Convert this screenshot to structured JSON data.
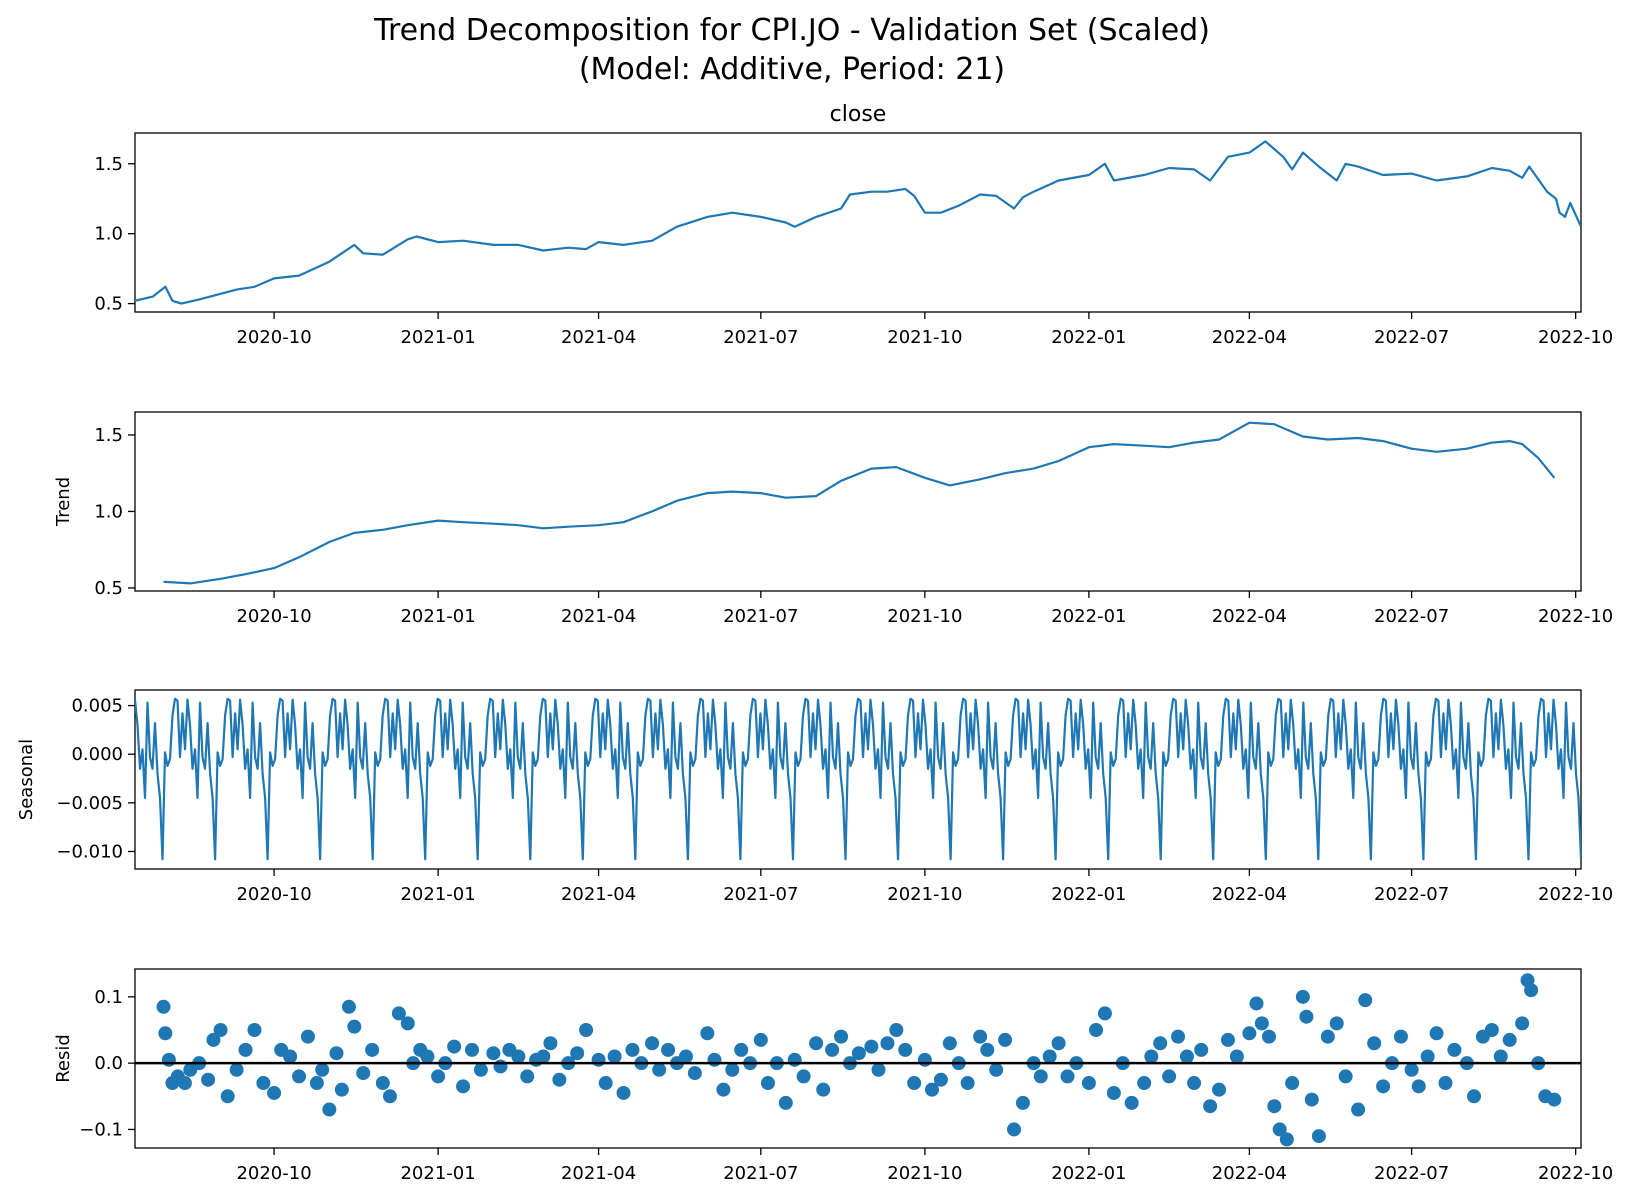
{
  "title_line1": "Trend Decomposition for CPI.JO - Validation Set (Scaled)",
  "title_line2": "(Model: Additive, Period: 21)",
  "colors": {
    "series": "#1f77b4",
    "zero_line": "#000000",
    "axes": "#000000"
  },
  "chart_data": [
    {
      "type": "line",
      "title": "close",
      "ylabel": "",
      "xlim": [
        "2020-07-15",
        "2022-10-04"
      ],
      "ylim": [
        0.44,
        1.72
      ],
      "yticks": [
        "0.5",
        "1.0",
        "1.5"
      ],
      "xticks": [
        "2020-10",
        "2021-01",
        "2021-04",
        "2021-07",
        "2021-10",
        "2022-01",
        "2022-04",
        "2022-07",
        "2022-10"
      ],
      "series": [
        {
          "x": [
            "2020-07-15",
            "2020-07-25",
            "2020-08-01",
            "2020-08-05",
            "2020-08-10",
            "2020-08-20",
            "2020-09-01",
            "2020-09-10",
            "2020-09-20",
            "2020-10-01",
            "2020-10-15",
            "2020-11-01",
            "2020-11-15",
            "2020-11-20",
            "2020-12-01",
            "2020-12-15",
            "2020-12-20",
            "2021-01-01",
            "2021-01-15",
            "2021-02-01",
            "2021-02-15",
            "2021-03-01",
            "2021-03-15",
            "2021-03-25",
            "2021-04-01",
            "2021-04-15",
            "2021-05-01",
            "2021-05-15",
            "2021-06-01",
            "2021-06-15",
            "2021-07-01",
            "2021-07-15",
            "2021-07-20",
            "2021-08-01",
            "2021-08-15",
            "2021-08-20",
            "2021-09-01",
            "2021-09-10",
            "2021-09-20",
            "2021-09-25",
            "2021-10-01",
            "2021-10-10",
            "2021-10-20",
            "2021-11-01",
            "2021-11-10",
            "2021-11-20",
            "2021-11-25",
            "2021-12-01",
            "2021-12-15",
            "2022-01-01",
            "2022-01-10",
            "2022-01-15",
            "2022-02-01",
            "2022-02-15",
            "2022-03-01",
            "2022-03-10",
            "2022-03-20",
            "2022-04-01",
            "2022-04-10",
            "2022-04-20",
            "2022-04-25",
            "2022-05-01",
            "2022-05-10",
            "2022-05-20",
            "2022-05-25",
            "2022-06-01",
            "2022-06-15",
            "2022-07-01",
            "2022-07-15",
            "2022-08-01",
            "2022-08-15",
            "2022-08-25",
            "2022-09-01",
            "2022-09-05",
            "2022-09-15",
            "2022-09-20",
            "2022-09-22",
            "2022-09-25",
            "2022-09-28",
            "2022-10-04"
          ],
          "y": [
            0.52,
            0.55,
            0.62,
            0.52,
            0.5,
            0.53,
            0.57,
            0.6,
            0.62,
            0.68,
            0.7,
            0.8,
            0.92,
            0.86,
            0.85,
            0.96,
            0.98,
            0.94,
            0.95,
            0.92,
            0.92,
            0.88,
            0.9,
            0.89,
            0.94,
            0.92,
            0.95,
            1.05,
            1.12,
            1.15,
            1.12,
            1.08,
            1.05,
            1.12,
            1.18,
            1.28,
            1.3,
            1.3,
            1.32,
            1.27,
            1.15,
            1.15,
            1.2,
            1.28,
            1.27,
            1.18,
            1.26,
            1.3,
            1.38,
            1.42,
            1.5,
            1.38,
            1.42,
            1.47,
            1.46,
            1.38,
            1.55,
            1.58,
            1.66,
            1.55,
            1.46,
            1.58,
            1.48,
            1.38,
            1.5,
            1.48,
            1.42,
            1.43,
            1.38,
            1.41,
            1.47,
            1.45,
            1.4,
            1.48,
            1.3,
            1.25,
            1.15,
            1.12,
            1.22,
            1.05
          ]
        }
      ]
    },
    {
      "type": "line",
      "title": "",
      "ylabel": "Trend",
      "xlim": [
        "2020-07-15",
        "2022-10-04"
      ],
      "ylim": [
        0.48,
        1.65
      ],
      "yticks": [
        "0.5",
        "1.0",
        "1.5"
      ],
      "xticks": [
        "2020-10",
        "2021-01",
        "2021-04",
        "2021-07",
        "2021-10",
        "2022-01",
        "2022-04",
        "2022-07",
        "2022-10"
      ],
      "series": [
        {
          "x": [
            "2020-07-31",
            "2020-08-15",
            "2020-09-01",
            "2020-09-15",
            "2020-10-01",
            "2020-10-15",
            "2020-11-01",
            "2020-11-15",
            "2020-12-01",
            "2020-12-15",
            "2021-01-01",
            "2021-01-15",
            "2021-02-01",
            "2021-02-15",
            "2021-03-01",
            "2021-03-15",
            "2021-04-01",
            "2021-04-15",
            "2021-05-01",
            "2021-05-15",
            "2021-06-01",
            "2021-06-15",
            "2021-07-01",
            "2021-07-15",
            "2021-08-01",
            "2021-08-15",
            "2021-09-01",
            "2021-09-15",
            "2021-10-01",
            "2021-10-15",
            "2021-11-01",
            "2021-11-15",
            "2021-12-01",
            "2021-12-15",
            "2022-01-01",
            "2022-01-15",
            "2022-02-01",
            "2022-02-15",
            "2022-03-01",
            "2022-03-15",
            "2022-04-01",
            "2022-04-15",
            "2022-05-01",
            "2022-05-15",
            "2022-06-01",
            "2022-06-15",
            "2022-07-01",
            "2022-07-15",
            "2022-08-01",
            "2022-08-15",
            "2022-08-25",
            "2022-09-01",
            "2022-09-10",
            "2022-09-19"
          ],
          "y": [
            0.54,
            0.53,
            0.56,
            0.59,
            0.63,
            0.7,
            0.8,
            0.86,
            0.88,
            0.91,
            0.94,
            0.93,
            0.92,
            0.91,
            0.89,
            0.9,
            0.91,
            0.93,
            1.0,
            1.07,
            1.12,
            1.13,
            1.12,
            1.09,
            1.1,
            1.2,
            1.28,
            1.29,
            1.22,
            1.17,
            1.21,
            1.25,
            1.28,
            1.33,
            1.42,
            1.44,
            1.43,
            1.42,
            1.45,
            1.47,
            1.58,
            1.57,
            1.49,
            1.47,
            1.48,
            1.46,
            1.41,
            1.39,
            1.41,
            1.45,
            1.46,
            1.44,
            1.35,
            1.22
          ]
        }
      ]
    },
    {
      "type": "line",
      "title": "",
      "ylabel": "Seasonal",
      "xlim": [
        "2020-07-15",
        "2022-10-04"
      ],
      "ylim": [
        -0.0118,
        0.0066
      ],
      "yticks": [
        "0.005",
        "0.000",
        "−0.005",
        "−0.010"
      ],
      "xticks": [
        "2020-10",
        "2021-01",
        "2021-04",
        "2021-07",
        "2021-10",
        "2022-01",
        "2022-04",
        "2022-07",
        "2022-10"
      ],
      "period_pattern": [
        0.0056,
        0.003,
        -0.0015,
        0.0005,
        -0.0045,
        0.0053,
        -0.0003,
        -0.0015,
        0.0032,
        -0.002,
        -0.0045,
        -0.0108,
        0.0002,
        -0.0012,
        -0.0005,
        0.004,
        0.0057,
        0.0055,
        -0.0003,
        0.0042,
        0.0005
      ],
      "series": [
        {
          "x_start": "2020-07-15",
          "x_end": "2022-10-04",
          "points": 579
        }
      ]
    },
    {
      "type": "scatter",
      "title": "",
      "ylabel": "Resid",
      "xlim": [
        "2020-07-15",
        "2022-10-04"
      ],
      "ylim": [
        -0.128,
        0.142
      ],
      "yticks": [
        "0.1",
        "0.0",
        "−0.1"
      ],
      "xticks": [
        "2020-10",
        "2021-01",
        "2021-04",
        "2021-07",
        "2021-10",
        "2022-01",
        "2022-04",
        "2022-07",
        "2022-10"
      ],
      "zero_line": 0,
      "series": [
        {
          "x": [
            "2020-07-31",
            "2020-08-01",
            "2020-08-03",
            "2020-08-05",
            "2020-08-08",
            "2020-08-12",
            "2020-08-15",
            "2020-08-20",
            "2020-08-25",
            "2020-08-28",
            "2020-09-01",
            "2020-09-05",
            "2020-09-10",
            "2020-09-15",
            "2020-09-20",
            "2020-09-25",
            "2020-10-01",
            "2020-10-05",
            "2020-10-10",
            "2020-10-15",
            "2020-10-20",
            "2020-10-25",
            "2020-10-28",
            "2020-11-01",
            "2020-11-05",
            "2020-11-08",
            "2020-11-12",
            "2020-11-15",
            "2020-11-20",
            "2020-11-25",
            "2020-12-01",
            "2020-12-05",
            "2020-12-10",
            "2020-12-15",
            "2020-12-18",
            "2020-12-22",
            "2020-12-26",
            "2021-01-01",
            "2021-01-05",
            "2021-01-10",
            "2021-01-15",
            "2021-01-20",
            "2021-01-25",
            "2021-02-01",
            "2021-02-05",
            "2021-02-10",
            "2021-02-15",
            "2021-02-20",
            "2021-02-25",
            "2021-03-01",
            "2021-03-05",
            "2021-03-10",
            "2021-03-15",
            "2021-03-20",
            "2021-03-25",
            "2021-04-01",
            "2021-04-05",
            "2021-04-10",
            "2021-04-15",
            "2021-04-20",
            "2021-04-25",
            "2021-05-01",
            "2021-05-05",
            "2021-05-10",
            "2021-05-15",
            "2021-05-20",
            "2021-05-25",
            "2021-06-01",
            "2021-06-05",
            "2021-06-10",
            "2021-06-15",
            "2021-06-20",
            "2021-06-25",
            "2021-07-01",
            "2021-07-05",
            "2021-07-10",
            "2021-07-15",
            "2021-07-20",
            "2021-07-25",
            "2021-08-01",
            "2021-08-05",
            "2021-08-10",
            "2021-08-15",
            "2021-08-20",
            "2021-08-25",
            "2021-09-01",
            "2021-09-05",
            "2021-09-10",
            "2021-09-15",
            "2021-09-20",
            "2021-09-25",
            "2021-10-01",
            "2021-10-05",
            "2021-10-10",
            "2021-10-15",
            "2021-10-20",
            "2021-10-25",
            "2021-11-01",
            "2021-11-05",
            "2021-11-10",
            "2021-11-15",
            "2021-11-20",
            "2021-11-25",
            "2021-12-01",
            "2021-12-05",
            "2021-12-10",
            "2021-12-15",
            "2021-12-20",
            "2021-12-25",
            "2022-01-01",
            "2022-01-05",
            "2022-01-10",
            "2022-01-15",
            "2022-01-20",
            "2022-01-25",
            "2022-02-01",
            "2022-02-05",
            "2022-02-10",
            "2022-02-15",
            "2022-02-20",
            "2022-02-25",
            "2022-03-01",
            "2022-03-05",
            "2022-03-10",
            "2022-03-15",
            "2022-03-20",
            "2022-03-25",
            "2022-04-01",
            "2022-04-05",
            "2022-04-08",
            "2022-04-12",
            "2022-04-15",
            "2022-04-18",
            "2022-04-22",
            "2022-04-25",
            "2022-05-01",
            "2022-05-03",
            "2022-05-06",
            "2022-05-10",
            "2022-05-15",
            "2022-05-20",
            "2022-05-25",
            "2022-06-01",
            "2022-06-05",
            "2022-06-10",
            "2022-06-15",
            "2022-06-20",
            "2022-06-25",
            "2022-07-01",
            "2022-07-05",
            "2022-07-10",
            "2022-07-15",
            "2022-07-20",
            "2022-07-25",
            "2022-08-01",
            "2022-08-05",
            "2022-08-10",
            "2022-08-15",
            "2022-08-20",
            "2022-08-25",
            "2022-09-01",
            "2022-09-04",
            "2022-09-06",
            "2022-09-10",
            "2022-09-14",
            "2022-09-19"
          ],
          "y": [
            0.085,
            0.045,
            0.005,
            -0.03,
            -0.02,
            -0.03,
            -0.01,
            0.0,
            -0.025,
            0.035,
            0.05,
            -0.05,
            -0.01,
            0.02,
            0.05,
            -0.03,
            -0.045,
            0.02,
            0.01,
            -0.02,
            0.04,
            -0.03,
            -0.01,
            -0.07,
            0.015,
            -0.04,
            0.085,
            0.055,
            -0.015,
            0.02,
            -0.03,
            -0.05,
            0.075,
            0.06,
            0.0,
            0.02,
            0.01,
            -0.02,
            0.0,
            0.025,
            -0.035,
            0.02,
            -0.01,
            0.015,
            -0.005,
            0.02,
            0.01,
            -0.02,
            0.005,
            0.01,
            0.03,
            -0.025,
            0.0,
            0.015,
            0.05,
            0.005,
            -0.03,
            0.01,
            -0.045,
            0.02,
            0.0,
            0.03,
            -0.01,
            0.02,
            0.0,
            0.01,
            -0.015,
            0.045,
            0.005,
            -0.04,
            -0.01,
            0.02,
            0.0,
            0.035,
            -0.03,
            0.0,
            -0.06,
            0.005,
            -0.02,
            0.03,
            -0.04,
            0.02,
            0.04,
            0.0,
            0.015,
            0.025,
            -0.01,
            0.03,
            0.05,
            0.02,
            -0.03,
            0.005,
            -0.04,
            -0.025,
            0.03,
            0.0,
            -0.03,
            0.04,
            0.02,
            -0.01,
            0.035,
            -0.1,
            -0.06,
            0.0,
            -0.02,
            0.01,
            0.03,
            -0.02,
            0.0,
            -0.03,
            0.05,
            0.075,
            -0.045,
            0.0,
            -0.06,
            -0.03,
            0.01,
            0.03,
            -0.02,
            0.04,
            0.01,
            -0.03,
            0.02,
            -0.065,
            -0.04,
            0.035,
            0.01,
            0.045,
            0.09,
            0.06,
            0.04,
            -0.065,
            -0.1,
            -0.115,
            -0.03,
            0.1,
            0.07,
            -0.055,
            -0.11,
            0.04,
            0.06,
            -0.02,
            -0.07,
            0.095,
            0.03,
            -0.035,
            0.0,
            0.04,
            -0.01,
            -0.035,
            0.01,
            0.045,
            -0.03,
            0.02,
            0.0,
            -0.05,
            0.04,
            0.05,
            0.01,
            0.035,
            0.06,
            0.125,
            0.11,
            0.0,
            -0.05,
            -0.055
          ]
        }
      ]
    }
  ]
}
